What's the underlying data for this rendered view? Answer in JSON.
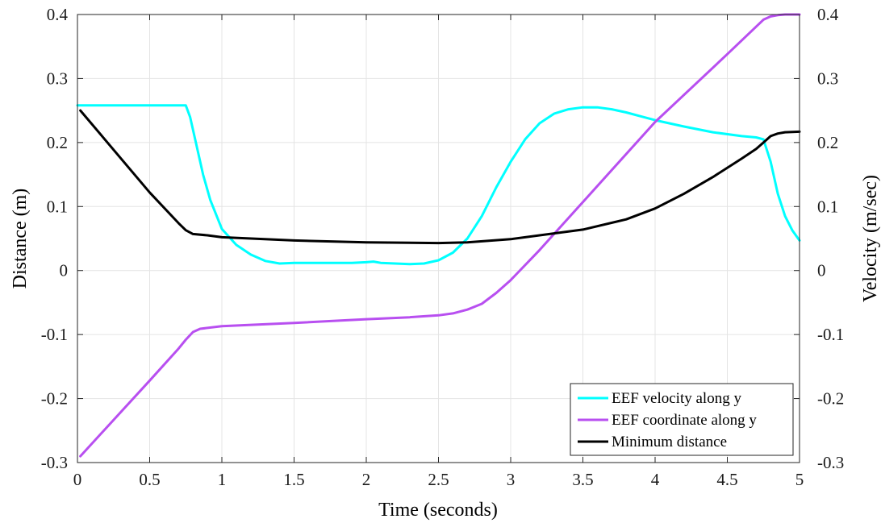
{
  "chart_data": {
    "type": "line",
    "xlabel": "Time (seconds)",
    "ylabel_left": "Distance (m)",
    "ylabel_right": "Velocity (m/sec)",
    "xlim": [
      0,
      5
    ],
    "ylim_left": [
      -0.3,
      0.4
    ],
    "ylim_right": [
      -0.3,
      0.4
    ],
    "xticks": [
      "0",
      "0.5",
      "1",
      "1.5",
      "2",
      "2.5",
      "3",
      "3.5",
      "4",
      "4.5",
      "5"
    ],
    "yticks_left": [
      "-0.3",
      "-0.2",
      "-0.1",
      "0",
      "0.1",
      "0.2",
      "0.3",
      "0.4"
    ],
    "yticks_right": [
      "-0.3",
      "-0.2",
      "-0.1",
      "0",
      "0.1",
      "0.2",
      "0.3",
      "0.4"
    ],
    "grid": true,
    "legend_position": "bottom-right",
    "series": [
      {
        "name": "EEF velocity along y",
        "color": "#00FFFF",
        "axis": "right",
        "x": [
          0,
          0.5,
          0.75,
          0.78,
          0.82,
          0.87,
          0.92,
          1.0,
          1.1,
          1.2,
          1.3,
          1.4,
          1.5,
          1.6,
          1.7,
          1.8,
          1.9,
          2.0,
          2.05,
          2.1,
          2.2,
          2.3,
          2.4,
          2.5,
          2.6,
          2.7,
          2.8,
          2.9,
          3.0,
          3.1,
          3.2,
          3.3,
          3.4,
          3.5,
          3.6,
          3.7,
          3.8,
          3.9,
          4.0,
          4.2,
          4.4,
          4.6,
          4.7,
          4.75,
          4.8,
          4.85,
          4.9,
          4.95,
          5.0
        ],
        "y": [
          0.258,
          0.258,
          0.258,
          0.24,
          0.2,
          0.15,
          0.11,
          0.065,
          0.04,
          0.025,
          0.015,
          0.011,
          0.012,
          0.012,
          0.012,
          0.012,
          0.012,
          0.013,
          0.014,
          0.012,
          0.011,
          0.01,
          0.011,
          0.016,
          0.028,
          0.05,
          0.085,
          0.13,
          0.17,
          0.205,
          0.23,
          0.245,
          0.252,
          0.255,
          0.255,
          0.252,
          0.247,
          0.241,
          0.235,
          0.225,
          0.216,
          0.21,
          0.208,
          0.205,
          0.17,
          0.12,
          0.085,
          0.063,
          0.047
        ]
      },
      {
        "name": "EEF coordinate along y",
        "color": "#B84FF0",
        "axis": "left",
        "x": [
          0.02,
          0.5,
          0.7,
          0.75,
          0.8,
          0.85,
          1.0,
          1.5,
          2.0,
          2.3,
          2.5,
          2.6,
          2.7,
          2.8,
          2.9,
          3.0,
          3.2,
          3.5,
          4.0,
          4.5,
          4.75,
          4.8,
          4.85,
          4.9,
          4.95,
          5.0
        ],
        "y": [
          -0.29,
          -0.172,
          -0.122,
          -0.108,
          -0.096,
          -0.091,
          -0.087,
          -0.082,
          -0.076,
          -0.073,
          -0.07,
          -0.067,
          -0.061,
          -0.052,
          -0.035,
          -0.015,
          0.032,
          0.107,
          0.232,
          0.338,
          0.392,
          0.397,
          0.399,
          0.4,
          0.4,
          0.4
        ]
      },
      {
        "name": "Minimum distance",
        "color": "#000000",
        "axis": "left",
        "x": [
          0.02,
          0.5,
          0.7,
          0.75,
          0.8,
          0.9,
          1.0,
          1.5,
          2.0,
          2.5,
          2.7,
          3.0,
          3.5,
          3.8,
          4.0,
          4.2,
          4.4,
          4.6,
          4.7,
          4.75,
          4.8,
          4.85,
          4.9,
          5.0
        ],
        "y": [
          0.25,
          0.122,
          0.074,
          0.063,
          0.057,
          0.055,
          0.052,
          0.047,
          0.044,
          0.043,
          0.044,
          0.049,
          0.064,
          0.08,
          0.097,
          0.12,
          0.146,
          0.175,
          0.19,
          0.2,
          0.21,
          0.214,
          0.216,
          0.217
        ]
      }
    ]
  }
}
